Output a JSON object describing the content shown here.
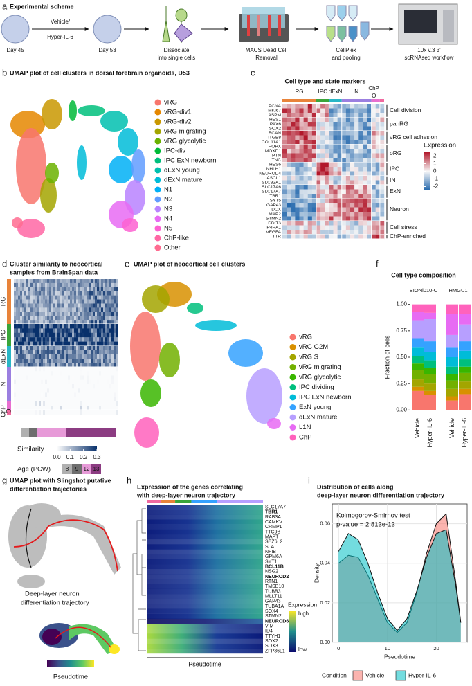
{
  "figure": {
    "a": {
      "letter": "a",
      "title": "Experimental scheme",
      "treatment": [
        "Vehicle/",
        "Hyper-IL-6"
      ],
      "steps": [
        {
          "lines": [
            "Day 45"
          ]
        },
        {
          "lines": [
            "Day 53"
          ]
        },
        {
          "lines": [
            "Dissociate",
            "into single cells"
          ]
        },
        {
          "lines": [
            "MACS Dead Cell",
            "Removal"
          ]
        },
        {
          "lines": [
            "CellPlex",
            "and pooling"
          ]
        },
        {
          "lines": [
            "10x v.3 3'",
            "scRNAseq workflow"
          ]
        }
      ]
    },
    "b": {
      "letter": "b",
      "title": "UMAP plot of cell clusters in dorsal forebrain organoids, D53",
      "clusters": [
        {
          "name": "vRG",
          "color": "#f8766d"
        },
        {
          "name": "vRG-div1",
          "color": "#e58700"
        },
        {
          "name": "vRG-div2",
          "color": "#c99800"
        },
        {
          "name": "vRG migrating",
          "color": "#a3a500"
        },
        {
          "name": "vRG glycolytic",
          "color": "#6bb100"
        },
        {
          "name": "IPC-div",
          "color": "#00ba38"
        },
        {
          "name": "IPC ExN newborn",
          "color": "#00bf7d"
        },
        {
          "name": "dExN young",
          "color": "#00c0af"
        },
        {
          "name": "dExN mature",
          "color": "#00bcd8"
        },
        {
          "name": "N1",
          "color": "#00b0f6"
        },
        {
          "name": "N2",
          "color": "#619cff"
        },
        {
          "name": "N3",
          "color": "#b983ff"
        },
        {
          "name": "N4",
          "color": "#e76bf3"
        },
        {
          "name": "N5",
          "color": "#fd61d1"
        },
        {
          "name": "ChP-like",
          "color": "#ff67a4"
        },
        {
          "name": "Other",
          "color": "#ff6c91"
        }
      ]
    },
    "c": {
      "letter": "c",
      "title": "Cell type and state markers",
      "column_groups": [
        {
          "label": "RG",
          "color": "#e8833a"
        },
        {
          "label": "IPC",
          "color": "#3aa53a"
        },
        {
          "label": "dExN",
          "color": "#29b6c6"
        },
        {
          "label": "N",
          "color": "#9b7fe0"
        },
        {
          "label": "ChP",
          "color": "#e86fd0"
        },
        {
          "label": "O",
          "color": "#f06aa0"
        }
      ],
      "row_groups": [
        {
          "label": "Cell division",
          "genes": [
            "PCNA",
            "MKI67",
            "ASPM"
          ]
        },
        {
          "label": "panRG",
          "genes": [
            "HES1",
            "PAX6",
            "SOX2"
          ]
        },
        {
          "label": "vRG cell adhesion",
          "genes": [
            "BCAN",
            "ITGB8",
            "COL11A1"
          ]
        },
        {
          "label": "oRG",
          "genes": [
            "HOPX",
            "MOXD1",
            "PTN",
            "TNC"
          ]
        },
        {
          "label": "IPC",
          "genes": [
            "HES6",
            "NHLH1",
            "NEUROD4"
          ]
        },
        {
          "label": "IN",
          "genes": [
            "ASCL1",
            "SLC32A1"
          ]
        },
        {
          "label": "ExN",
          "genes": [
            "SLC17A6",
            "SLC17A7",
            "TBR1"
          ]
        },
        {
          "label": "Neuron",
          "genes": [
            "SYT5",
            "GAP43",
            "DCX",
            "MAP2",
            "STMN2"
          ]
        },
        {
          "label": "Cell stress",
          "genes": [
            "DDIT3",
            "P4HA1",
            "VEGFA"
          ]
        },
        {
          "label": "ChP-enriched",
          "genes": [
            "TTR"
          ]
        }
      ],
      "colorbar": {
        "title": "Expression",
        "lim": [
          -2.5,
          2.5
        ],
        "ticks": [
          2,
          1,
          0,
          -1,
          -2
        ]
      }
    },
    "d": {
      "letter": "d",
      "title_lines": [
        "Cluster similarity to neocortical",
        "samples from BrainSpan data"
      ],
      "row_labels": [
        "RG",
        "IPC",
        "dExN",
        "N",
        "ChP",
        "O"
      ],
      "similarity": {
        "title": "Similarity",
        "lim": [
          0,
          0.3
        ],
        "ticks": [
          {
            "value": 0,
            "label": "0.0"
          },
          0.1,
          0.2,
          0.3
        ]
      },
      "age": {
        "title": "Age (PCW)",
        "levels": [
          {
            "label": "8",
            "color": "#b0b0b0"
          },
          {
            "label": "9",
            "color": "#6e6e6e"
          },
          {
            "label": "12",
            "color": "#e79ad8"
          },
          {
            "label": "13",
            "color": "#8c3c82"
          }
        ]
      }
    },
    "e": {
      "letter": "e",
      "title": "UMAP plot of neocortical cell clusters",
      "clusters": [
        {
          "name": "vRG",
          "color": "#f8766d"
        },
        {
          "name": "vRG G2M",
          "color": "#d89000"
        },
        {
          "name": "vRG S",
          "color": "#a3a500"
        },
        {
          "name": "vRG migrating",
          "color": "#72b000"
        },
        {
          "name": "vRG glycolytic",
          "color": "#39b600"
        },
        {
          "name": "IPC dividing",
          "color": "#00bf7d"
        },
        {
          "name": "IPC ExN newborn",
          "color": "#00bcd8"
        },
        {
          "name": "ExN young",
          "color": "#35a2ff"
        },
        {
          "name": "dExN mature",
          "color": "#b79fff"
        },
        {
          "name": "L1N",
          "color": "#e76bf3"
        },
        {
          "name": "ChP",
          "color": "#ff62bc"
        }
      ]
    },
    "g": {
      "letter": "g",
      "title_lines": [
        "UMAP plot with Slingshot putative",
        "differentiation trajectories"
      ],
      "trajectory_lines": [
        "Deep-layer neuron",
        "differentiation trajectory"
      ],
      "colorbar_title": "Pseudotime"
    },
    "h": {
      "letter": "h",
      "title_lines": [
        "Expression of the genes correlating",
        "with deep-layer neuron trajectory"
      ],
      "genes": [
        {
          "name": "SLC17A7"
        },
        {
          "name": "TBR1",
          "bold": true
        },
        {
          "name": "RAB3A"
        },
        {
          "name": "CAMKV"
        },
        {
          "name": "CRMP1"
        },
        {
          "name": "TTC9B"
        },
        {
          "name": "MAPT"
        },
        {
          "name": "SEZ6L2"
        },
        {
          "name": "SLA"
        },
        {
          "name": "NFIB"
        },
        {
          "name": "GPM6A"
        },
        {
          "name": "SYT1"
        },
        {
          "name": "BCL11B",
          "bold": true
        },
        {
          "name": "NSG2"
        },
        {
          "name": "NEUROD2",
          "bold": true
        },
        {
          "name": "RTN1"
        },
        {
          "name": "TMSB10"
        },
        {
          "name": "TUBB3"
        },
        {
          "name": "MLLT11"
        },
        {
          "name": "GAP43"
        },
        {
          "name": "TUBA1A"
        },
        {
          "name": "SOX4"
        },
        {
          "name": "STMN2"
        },
        {
          "name": "NEUROD6",
          "bold": true
        },
        {
          "name": "VIM"
        },
        {
          "name": "ID4"
        },
        {
          "name": "TTYH1"
        },
        {
          "name": "SOX2"
        },
        {
          "name": "SOX3"
        },
        {
          "name": "ZFP36L1"
        }
      ],
      "colorbar": {
        "title": "Expression",
        "high": "high",
        "low": "low"
      },
      "x_label": "Pseudotime"
    }
  },
  "chart_data": [
    {
      "type": "stacked_bar",
      "letter": "f",
      "title": "Cell type composition",
      "ylabel": "Fraction of cells",
      "facets": [
        {
          "title": "BIONi010-C",
          "categories": [
            "Vehicle",
            "Hyper-IL-6"
          ]
        },
        {
          "title": "HMGU1",
          "categories": [
            "Vehicle",
            "Hyper-IL-6"
          ]
        }
      ],
      "series": [
        {
          "color": "#f8766d",
          "values": [
            0.18,
            0.14,
            0.09,
            0.15
          ]
        },
        {
          "color": "#d89000",
          "values": [
            0.04,
            0.04,
            0.04,
            0.05
          ]
        },
        {
          "color": "#a3a500",
          "values": [
            0.07,
            0.07,
            0.07,
            0.07
          ]
        },
        {
          "color": "#72b000",
          "values": [
            0.09,
            0.09,
            0.08,
            0.08
          ]
        },
        {
          "color": "#39b600",
          "values": [
            0.06,
            0.06,
            0.06,
            0.06
          ]
        },
        {
          "color": "#00bf7d",
          "values": [
            0.07,
            0.07,
            0.07,
            0.07
          ]
        },
        {
          "color": "#00bcd8",
          "values": [
            0.08,
            0.08,
            0.09,
            0.08
          ]
        },
        {
          "color": "#35a2ff",
          "values": [
            0.09,
            0.1,
            0.09,
            0.09
          ]
        },
        {
          "color": "#b79fff",
          "values": [
            0.17,
            0.21,
            0.12,
            0.16
          ]
        },
        {
          "color": "#e76bf3",
          "values": [
            0.08,
            0.06,
            0.2,
            0.1
          ]
        },
        {
          "color": "#ff62bc",
          "values": [
            0.07,
            0.08,
            0.09,
            0.09
          ]
        }
      ],
      "ylim": [
        -0.05,
        1.05
      ],
      "yticks": [
        {
          "value": 0,
          "label": "0.00"
        },
        0.25,
        {
          "value": 0.5,
          "label": "0.50"
        },
        0.75,
        {
          "value": 1,
          "label": "1.00"
        }
      ]
    },
    {
      "type": "area",
      "letter": "i",
      "title_lines": [
        "Distribution of cells along",
        "deep-layer neuron differentiation trajectory"
      ],
      "annotation_lines": [
        "Kolmogorov-Smirnov test",
        "p-value = 2.813e-13"
      ],
      "xlabel": "Pseudotime",
      "ylabel": "Density",
      "legend_title": "Condition",
      "x": [
        0,
        2,
        4,
        6,
        8,
        10,
        12,
        14,
        16,
        18,
        20,
        22,
        24,
        25
      ],
      "series": [
        {
          "name": "Vehicle",
          "color": "#f8766d",
          "values": [
            0.04,
            0.044,
            0.043,
            0.034,
            0.022,
            0.01,
            0.005,
            0.01,
            0.025,
            0.045,
            0.06,
            0.065,
            0.03,
            0.01
          ]
        },
        {
          "name": "Hyper-IL-6",
          "color": "#00bfc4",
          "values": [
            0.046,
            0.055,
            0.052,
            0.04,
            0.025,
            0.012,
            0.006,
            0.012,
            0.026,
            0.043,
            0.055,
            0.057,
            0.028,
            0.01
          ]
        }
      ],
      "xlim": [
        -1.3,
        26.3
      ],
      "ylim": [
        0,
        0.07
      ],
      "xticks": [
        0,
        10,
        20
      ],
      "yticks": [
        {
          "value": 0,
          "label": "0.00"
        },
        0.02,
        0.04,
        0.06
      ],
      "grid": true
    }
  ]
}
